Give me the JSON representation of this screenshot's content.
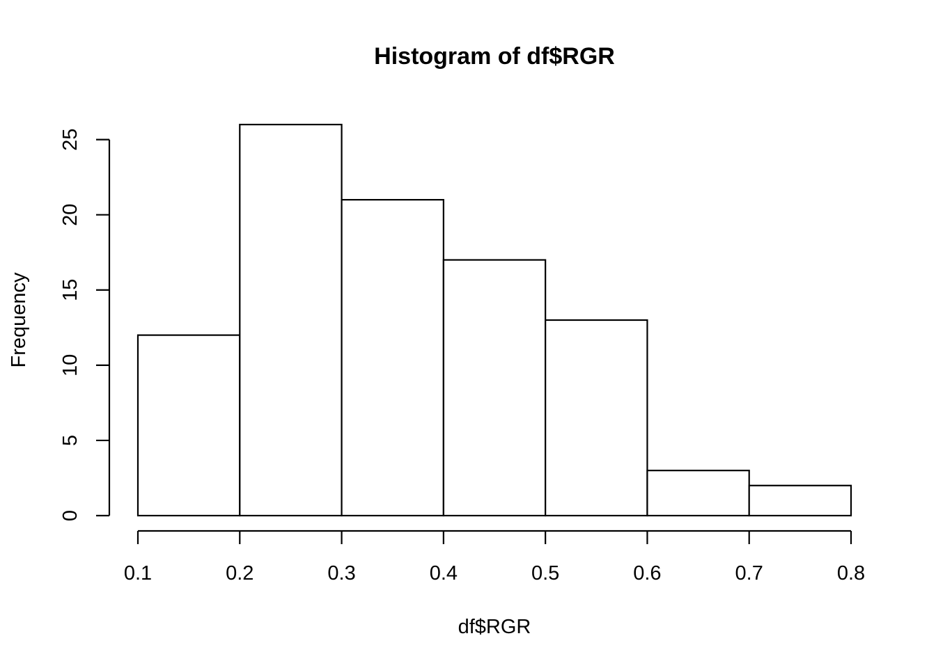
{
  "chart_data": {
    "type": "bar",
    "title": "Histogram of df$RGR",
    "xlabel": "df$RGR",
    "ylabel": "Frequency",
    "bins": [
      {
        "from": 0.1,
        "to": 0.2,
        "count": 12
      },
      {
        "from": 0.2,
        "to": 0.3,
        "count": 26
      },
      {
        "from": 0.3,
        "to": 0.4,
        "count": 21
      },
      {
        "from": 0.4,
        "to": 0.5,
        "count": 17
      },
      {
        "from": 0.5,
        "to": 0.6,
        "count": 13
      },
      {
        "from": 0.6,
        "to": 0.7,
        "count": 3
      },
      {
        "from": 0.7,
        "to": 0.8,
        "count": 2
      }
    ],
    "xlim": [
      0.1,
      0.8
    ],
    "ylim": [
      0,
      26
    ],
    "x_ticks": [
      "0.1",
      "0.2",
      "0.3",
      "0.4",
      "0.5",
      "0.6",
      "0.7",
      "0.8"
    ],
    "y_ticks": [
      "0",
      "5",
      "10",
      "15",
      "20",
      "25"
    ],
    "grid": false,
    "legend": "none"
  }
}
